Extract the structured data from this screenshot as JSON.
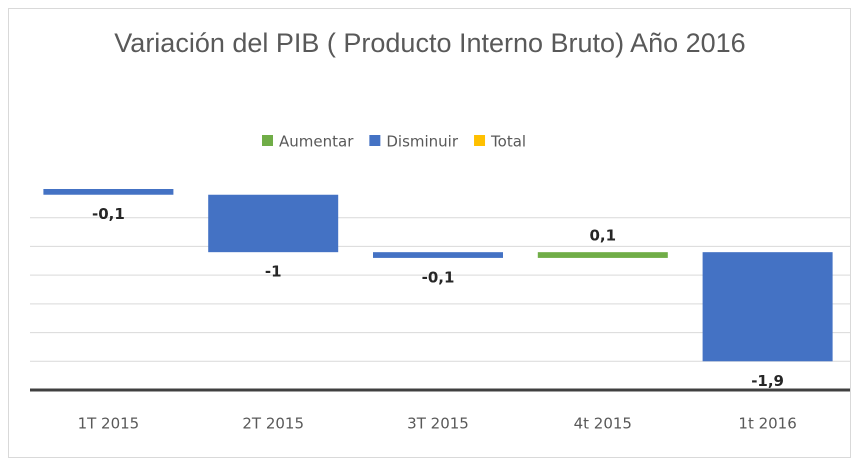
{
  "chart_data": {
    "type": "waterfall",
    "title": "Variación del PIB ( Producto Interno Bruto) Año 2016",
    "legend": [
      {
        "name": "Aumentar",
        "color": "#70ad47"
      },
      {
        "name": "Disminuir",
        "color": "#4472c4"
      },
      {
        "name": "Total",
        "color": "#ffc000"
      }
    ],
    "categories": [
      "1T 2015",
      "2T 2015",
      "3T 2015",
      "4t 2015",
      "1t 2016"
    ],
    "values": [
      -0.1,
      -1,
      -0.1,
      0.1,
      -1.9
    ],
    "value_labels": [
      "-0,1",
      "-1",
      "-0,1",
      "0,1",
      "-1,9"
    ],
    "ylim": [
      -3.5,
      0
    ],
    "yticks": [
      -3.5,
      -3,
      -2.5,
      -2,
      -1.5,
      -1,
      -0.5
    ],
    "grid": true
  }
}
